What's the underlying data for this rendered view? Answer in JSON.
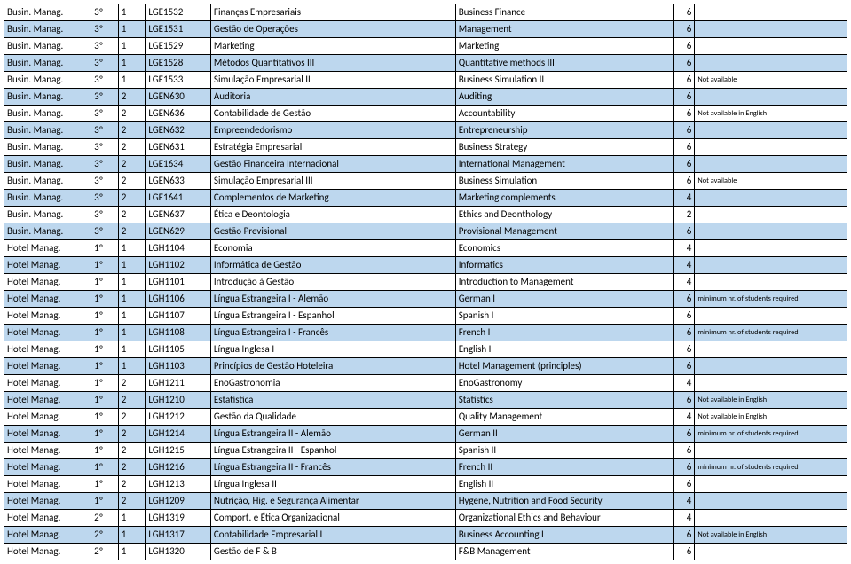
{
  "columns": [
    {
      "key": "c0",
      "class": "c0"
    },
    {
      "key": "c1",
      "class": "c1"
    },
    {
      "key": "c2",
      "class": "c2"
    },
    {
      "key": "c3",
      "class": "c3"
    },
    {
      "key": "c4",
      "class": "c4"
    },
    {
      "key": "c5",
      "class": "c5"
    },
    {
      "key": "c6",
      "class": "c6"
    },
    {
      "key": "c7",
      "class": "c7 note"
    }
  ],
  "rows": [
    {
      "stripe": false,
      "cells": [
        "Busin. Manag.",
        "3º",
        "1",
        "LGE1532",
        "Finanças Empresariais",
        "Business Finance",
        "6",
        ""
      ]
    },
    {
      "stripe": true,
      "cells": [
        "Busin. Manag.",
        "3º",
        "1",
        "LGE1531",
        "Gestão de Operações",
        "Management",
        "6",
        ""
      ]
    },
    {
      "stripe": false,
      "cells": [
        "Busin. Manag.",
        "3º",
        "1",
        "LGE1529",
        "Marketing",
        "Marketing",
        "6",
        ""
      ]
    },
    {
      "stripe": true,
      "cells": [
        "Busin. Manag.",
        "3º",
        "1",
        "LGE1528",
        "Métodos Quantitativos III",
        "Quantitative methods III",
        "6",
        ""
      ]
    },
    {
      "stripe": false,
      "cells": [
        "Busin. Manag.",
        "3º",
        "1",
        "LGE1533",
        "Simulação Empresarial II",
        "Business Simulation II",
        "6",
        "Not available"
      ]
    },
    {
      "stripe": true,
      "cells": [
        "Busin. Manag.",
        "3º",
        "2",
        "LGEN630",
        "Auditoria",
        "Auditing",
        "6",
        ""
      ]
    },
    {
      "stripe": false,
      "cells": [
        "Busin. Manag.",
        "3º",
        "2",
        "LGEN636",
        "Contabilidade de Gestão",
        "Accountability",
        "6",
        "Not available in English"
      ]
    },
    {
      "stripe": true,
      "cells": [
        "Busin. Manag.",
        "3º",
        "2",
        "LGEN632",
        "Empreendedorismo",
        "Entrepreneurship",
        "6",
        ""
      ]
    },
    {
      "stripe": false,
      "cells": [
        "Busin. Manag.",
        "3º",
        "2",
        "LGEN631",
        "Estratégia Empresarial",
        "Business Strategy",
        "6",
        ""
      ]
    },
    {
      "stripe": true,
      "cells": [
        "Busin. Manag.",
        "3º",
        "2",
        "LGE1634",
        "Gestão Financeira Internacional",
        "International Management",
        "6",
        ""
      ]
    },
    {
      "stripe": false,
      "cells": [
        "Busin. Manag.",
        "3º",
        "2",
        "LGEN633",
        "Simulação Empresarial III",
        "Business Simulation",
        "6",
        "Not available"
      ]
    },
    {
      "stripe": true,
      "cells": [
        "Busin. Manag.",
        "3º",
        "2",
        "LGE1641",
        "Complementos de Marketing",
        "Marketing complements",
        "4",
        ""
      ]
    },
    {
      "stripe": false,
      "cells": [
        "Busin. Manag.",
        "3º",
        "2",
        "LGEN637",
        "Ética e Deontologia",
        "Ethics and Deonthology",
        "2",
        ""
      ]
    },
    {
      "stripe": true,
      "cells": [
        "Busin. Manag.",
        "3º",
        "2",
        "LGEN629",
        "Gestão Previsional",
        "Provisional Management",
        "6",
        ""
      ]
    },
    {
      "stripe": false,
      "cells": [
        "Hotel Manag.",
        "1º",
        "1",
        "LGH1104",
        "Economia",
        "Economics",
        "4",
        ""
      ]
    },
    {
      "stripe": true,
      "cells": [
        "Hotel Manag.",
        "1º",
        "1",
        "LGH1102",
        "Informática de Gestão",
        "Informatics",
        "4",
        ""
      ]
    },
    {
      "stripe": false,
      "cells": [
        "Hotel Manag.",
        "1º",
        "1",
        "LGH1101",
        "Introdução à Gestão",
        "Introduction to Management",
        "4",
        ""
      ]
    },
    {
      "stripe": true,
      "cells": [
        "Hotel Manag.",
        "1º",
        "1",
        "LGH1106",
        "Língua Estrangeira I - Alemão",
        "German I",
        "6",
        "minimum nr. of students required"
      ]
    },
    {
      "stripe": false,
      "cells": [
        "Hotel Manag.",
        "1º",
        "1",
        "LGH1107",
        "Língua Estrangeira I - Espanhol",
        "Spanish I",
        "6",
        ""
      ]
    },
    {
      "stripe": true,
      "cells": [
        "Hotel Manag.",
        "1º",
        "1",
        "LGH1108",
        "Língua Estrangeira I - Francês",
        "French I",
        "6",
        "minimum nr. of students required"
      ]
    },
    {
      "stripe": false,
      "cells": [
        "Hotel Manag.",
        "1º",
        "1",
        "LGH1105",
        "Língua Inglesa I",
        "English I",
        "6",
        ""
      ]
    },
    {
      "stripe": true,
      "cells": [
        "Hotel Manag.",
        "1º",
        "1",
        "LGH1103",
        "Princípios de Gestão Hoteleira",
        "Hotel Management (principles)",
        "6",
        ""
      ]
    },
    {
      "stripe": false,
      "cells": [
        "Hotel Manag.",
        "1º",
        "2",
        "LGH1211",
        "EnoGastronomia",
        "EnoGastronomy",
        "4",
        ""
      ]
    },
    {
      "stripe": true,
      "cells": [
        "Hotel Manag.",
        "1º",
        "2",
        "LGH1210",
        "Estatística",
        "Statistics",
        "6",
        "Not available in English"
      ]
    },
    {
      "stripe": false,
      "cells": [
        "Hotel Manag.",
        "1º",
        "2",
        "LGH1212",
        "Gestão da Qualidade",
        "Quality Management",
        "4",
        "Not available in English"
      ]
    },
    {
      "stripe": true,
      "cells": [
        "Hotel Manag.",
        "1º",
        "2",
        "LGH1214",
        "Língua Estrangeira II - Alemão",
        "German II",
        "6",
        "minimum nr. of students required"
      ]
    },
    {
      "stripe": false,
      "cells": [
        "Hotel Manag.",
        "1º",
        "2",
        "LGH1215",
        "Língua Estrangeira II - Espanhol",
        "Spanish II",
        "6",
        ""
      ]
    },
    {
      "stripe": true,
      "cells": [
        "Hotel Manag.",
        "1º",
        "2",
        "LGH1216",
        "Língua Estrangeira II - Francês",
        "French II",
        "6",
        "minimum nr. of students required"
      ]
    },
    {
      "stripe": false,
      "cells": [
        "Hotel Manag.",
        "1º",
        "2",
        "LGH1213",
        "Língua Inglesa II",
        "English II",
        "6",
        ""
      ]
    },
    {
      "stripe": true,
      "cells": [
        "Hotel Manag.",
        "1º",
        "2",
        "LGH1209",
        "Nutrição, Hig. e Segurança Alimentar",
        "Hygene, Nutrition and Food Security",
        "4",
        ""
      ]
    },
    {
      "stripe": false,
      "cells": [
        "Hotel Manag.",
        "2º",
        "1",
        "LGH1319",
        "Comport. e Ética Organizacional",
        "Organizational Ethics and Behaviour",
        "4",
        ""
      ]
    },
    {
      "stripe": true,
      "cells": [
        "Hotel Manag.",
        "2º",
        "1",
        "LGH1317",
        "Contabilidade Empresarial I",
        "Business Accounting I",
        "6",
        "Not available in English"
      ]
    },
    {
      "stripe": false,
      "cells": [
        "Hotel Manag.",
        "2º",
        "1",
        "LGH1320",
        "Gestão de F & B",
        "F&B Management",
        "6",
        ""
      ]
    }
  ]
}
